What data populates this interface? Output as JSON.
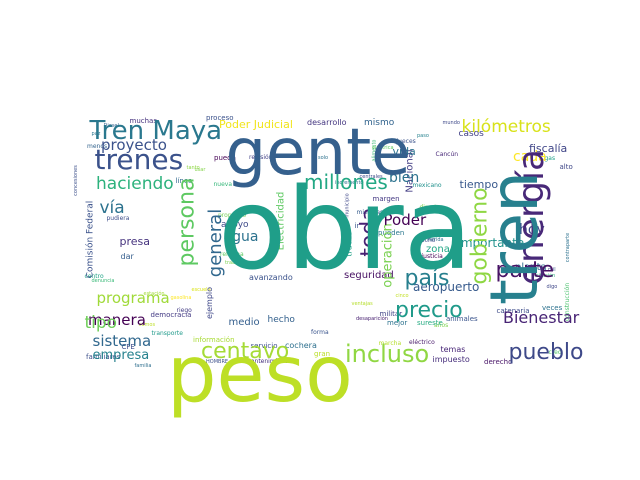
{
  "wordcloud": {
    "words": [
      {
        "text": "obra",
        "color": "#1f9e89"
      },
      {
        "text": "tren",
        "color": "#27808e"
      },
      {
        "text": "peso",
        "color": "#bddf26"
      },
      {
        "text": "gente",
        "color": "#35608d"
      },
      {
        "text": "energía",
        "color": "#482878"
      },
      {
        "text": "Tren Maya",
        "color": "#2a788e"
      },
      {
        "text": "trenes",
        "color": "#3b528b"
      },
      {
        "text": "gobierno",
        "color": "#8fd744"
      },
      {
        "text": "centavo",
        "color": "#a5db36"
      },
      {
        "text": "incluso",
        "color": "#90d743"
      },
      {
        "text": "pueblo",
        "color": "#3e4989"
      },
      {
        "text": "precio",
        "color": "#1f9a8a"
      },
      {
        "text": "parte",
        "color": "#471365"
      },
      {
        "text": "país",
        "color": "#277f8e"
      },
      {
        "text": "persona",
        "color": "#5ec962"
      },
      {
        "text": "millones",
        "color": "#22a884"
      },
      {
        "text": "general",
        "color": "#31688e"
      },
      {
        "text": "toda",
        "color": "#482173"
      },
      {
        "text": "haciendo",
        "color": "#2db27d"
      },
      {
        "text": "proyecto",
        "color": "#3b528b"
      },
      {
        "text": "kilómetros",
        "color": "#d8e219"
      },
      {
        "text": "programa",
        "color": "#a0da39"
      },
      {
        "text": "sistema",
        "color": "#31688e"
      },
      {
        "text": "manera",
        "color": "#440154"
      },
      {
        "text": "empresa",
        "color": "#26828e"
      },
      {
        "text": "tipo",
        "color": "#6ece58"
      },
      {
        "text": "vía",
        "color": "#2c728e"
      },
      {
        "text": "agua",
        "color": "#2c728e"
      },
      {
        "text": "Bienestar",
        "color": "#482475"
      },
      {
        "text": "hoy",
        "color": "#3e4a89"
      },
      {
        "text": "Poder",
        "color": "#440154"
      },
      {
        "text": "bien",
        "color": "#2c728e"
      },
      {
        "text": "cada",
        "color": "#fde725"
      },
      {
        "text": "operación",
        "color": "#7ad151"
      },
      {
        "text": "aeropuerto",
        "color": "#375a8c"
      },
      {
        "text": "importante",
        "color": "#20928c"
      },
      {
        "text": "Poder Judicial",
        "color": "#f1e51d"
      },
      {
        "text": "vida",
        "color": "#2c728e"
      },
      {
        "text": "fiscalía",
        "color": "#404688"
      },
      {
        "text": "Nacional",
        "color": "#433e85"
      },
      {
        "text": "tiempo",
        "color": "#38588c"
      },
      {
        "text": "Electricidad",
        "color": "#5ec962"
      },
      {
        "text": "zona",
        "color": "#21a685"
      },
      {
        "text": "presa",
        "color": "#46337e"
      },
      {
        "text": "seguridad",
        "color": "#471063"
      },
      {
        "text": "planta",
        "color": "#2e6e8e"
      },
      {
        "text": "Comisión Federal",
        "color": "#3b528b"
      },
      {
        "text": "medio",
        "color": "#355f8d"
      },
      {
        "text": "hecho",
        "color": "#34618d"
      },
      {
        "text": "cochera",
        "color": "#2d708e"
      },
      {
        "text": "mismo",
        "color": "#32648e"
      },
      {
        "text": "desarrollo",
        "color": "#453781"
      },
      {
        "text": "proceso",
        "color": "#3b528b"
      },
      {
        "text": "casos",
        "color": "#424086"
      },
      {
        "text": "muchas",
        "color": "#46327e"
      },
      {
        "text": "línea",
        "color": "#31688e"
      },
      {
        "text": "apoyo",
        "color": "#3e4a89"
      },
      {
        "text": "propósito",
        "color": "#75d054"
      },
      {
        "text": "avanzando",
        "color": "#3b528b"
      },
      {
        "text": "ejemplo",
        "color": "#3f4889"
      },
      {
        "text": "servicio",
        "color": "#3d4e8a"
      },
      {
        "text": "información",
        "color": "#a8db34"
      },
      {
        "text": "mantenimiento",
        "color": "#46307e"
      },
      {
        "text": "derecho",
        "color": "#481467"
      },
      {
        "text": "impuesto",
        "color": "#472e7c"
      },
      {
        "text": "sureste",
        "color": "#25ab82"
      },
      {
        "text": "animales",
        "color": "#3a548c"
      },
      {
        "text": "militar",
        "color": "#414487"
      },
      {
        "text": "mejor",
        "color": "#2c728e"
      },
      {
        "text": "temas",
        "color": "#482677"
      },
      {
        "text": "catenaria",
        "color": "#3e4c8a"
      },
      {
        "text": "construcción",
        "color": "#4ac16d"
      },
      {
        "text": "creo",
        "color": "#52c569"
      },
      {
        "text": "alto",
        "color": "#3f4788"
      },
      {
        "text": "gas",
        "color": "#1fa088"
      },
      {
        "text": "Cancún",
        "color": "#482878"
      },
      {
        "text": "mexicano",
        "color": "#21918c"
      },
      {
        "text": "jueces",
        "color": "#3b528b"
      },
      {
        "text": "través",
        "color": "#1fa287"
      },
      {
        "text": "pueden",
        "color": "#2a778e"
      },
      {
        "text": "director",
        "color": "#7fd34e"
      },
      {
        "text": "mientras",
        "color": "#365c8d"
      },
      {
        "text": "margen",
        "color": "#443983"
      },
      {
        "text": "justicia",
        "color": "#440154"
      },
      {
        "text": "ocho",
        "color": "#3e4c8a"
      },
      {
        "text": "familiares",
        "color": "#3c4f8a"
      },
      {
        "text": "democracia",
        "color": "#443b84"
      },
      {
        "text": "riego",
        "color": "#433d84"
      },
      {
        "text": "dar",
        "color": "#355e8d"
      },
      {
        "text": "CFE",
        "color": "#3e4c8a"
      },
      {
        "text": "centro",
        "color": "#20a386"
      },
      {
        "text": "denuncia",
        "color": "#38b977"
      },
      {
        "text": "menos",
        "color": "#33638d"
      },
      {
        "text": "pueda",
        "color": "#440154"
      },
      {
        "text": "revisión",
        "color": "#424186"
      },
      {
        "text": "nueva",
        "color": "#35b779"
      },
      {
        "text": "forma",
        "color": "#3a548c"
      },
      {
        "text": "gran",
        "color": "#bade28"
      },
      {
        "text": "marcha",
        "color": "#b5de2b"
      },
      {
        "text": "eléctrico",
        "color": "#481a6c"
      },
      {
        "text": "Mérida",
        "color": "#2d708e"
      },
      {
        "text": "digo",
        "color": "#3f4788"
      },
      {
        "text": "paso",
        "color": "#26828e"
      },
      {
        "text": "años",
        "color": "#7fd34e"
      },
      {
        "text": "mundo",
        "color": "#3e4989"
      },
      {
        "text": "paz",
        "color": "#2b758e"
      },
      {
        "text": "estación",
        "color": "#a2da37"
      },
      {
        "text": "pudiera",
        "color": "#3d4d8a"
      },
      {
        "text": "cinco",
        "color": "#c2df23"
      },
      {
        "text": "HOMBRE",
        "color": "#3c4f8a"
      },
      {
        "text": "familia",
        "color": "#2e6f8e"
      },
      {
        "text": "concesiones",
        "color": "#3c4f8a"
      },
      {
        "text": "solo",
        "color": "#2c718e"
      },
      {
        "text": "trabajo",
        "color": "#7ad151"
      },
      {
        "text": "reforma",
        "color": "#5ec962"
      },
      {
        "text": "alimento",
        "color": "#3bbb75"
      },
      {
        "text": "mil",
        "color": "#3b528b"
      },
      {
        "text": "municipio",
        "color": "#3f4889"
      },
      {
        "text": "contraparte",
        "color": "#2c718e"
      },
      {
        "text": "ventajas",
        "color": "#b5de2b"
      },
      {
        "text": "Diesel",
        "color": "#34618d"
      },
      {
        "text": "vamos",
        "color": "#bddf26"
      },
      {
        "text": "incremento",
        "color": "#2e6f8e"
      },
      {
        "text": "ir",
        "color": "#3a548c"
      },
      {
        "text": "veces",
        "color": "#2c728e"
      },
      {
        "text": "eléctrica",
        "color": "#5ec962"
      },
      {
        "text": "tanto",
        "color": "#8fd744"
      },
      {
        "text": "desaparición",
        "color": "#482071"
      },
      {
        "text": "usar",
        "color": "#84d44b"
      },
      {
        "text": "centrales",
        "color": "#3e4989"
      },
      {
        "text": "licitación",
        "color": "#2fb47c"
      },
      {
        "text": "transporte",
        "color": "#1f9a8a"
      },
      {
        "text": "gasolina",
        "color": "#fde725"
      },
      {
        "text": "escuela",
        "color": "#dae319"
      }
    ]
  }
}
